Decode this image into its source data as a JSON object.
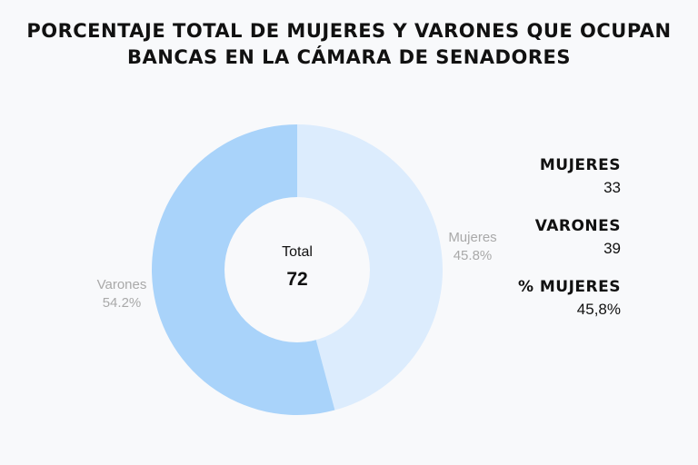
{
  "title": {
    "line1": "PORCENTAJE TOTAL DE MUJERES Y VARONES QUE OCUPAN",
    "line2": "BANCAS EN LA CÁMARA DE SENADORES"
  },
  "chart_data": {
    "type": "pie",
    "donut": true,
    "title": "PORCENTAJE TOTAL DE MUJERES Y VARONES QUE OCUPAN BANCAS EN LA CÁMARA DE SENADORES",
    "slices": [
      {
        "name": "Mujeres",
        "value": 33,
        "percent_label": "45.8%",
        "color": "#dcecfd"
      },
      {
        "name": "Varones",
        "value": 39,
        "percent_label": "54.2%",
        "color": "#a9d3fa"
      }
    ],
    "center": {
      "label": "Total",
      "value": "72"
    }
  },
  "stats": [
    {
      "label": "MUJERES",
      "value": "33"
    },
    {
      "label": "VARONES",
      "value": "39"
    },
    {
      "label": "% MUJERES",
      "value": "45,8%"
    }
  ]
}
